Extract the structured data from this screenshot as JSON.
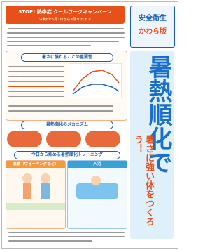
{
  "header": {
    "title": "STOP! 熱中症 クールワークキャンペーン",
    "period": "令和6年5月1日から9月30日まで",
    "logo_top": "安全衛生",
    "logo_bottom": "かわら版"
  },
  "sections": [
    {
      "heading": "暑さに慣れることの重要性"
    },
    {
      "heading": "暑熱順化のメカニズム"
    },
    {
      "heading": "今日から始める暑熱順化トレーニング"
    }
  ],
  "training": {
    "walking": "運動（ウォーキングなど）",
    "bathing": "入浴"
  },
  "side_title": {
    "main": "暑熱順化で",
    "sub": "暑さに強い体をつくろう！"
  }
}
